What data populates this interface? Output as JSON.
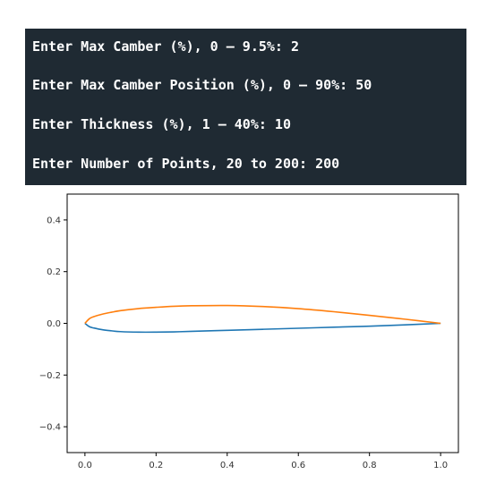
{
  "terminal": {
    "lines": [
      "Enter Max Camber (%), 0 – 9.5%: 2",
      "Enter Max Camber Position (%), 0 – 90%: 50",
      "Enter Thickness (%), 1 – 40%: 10",
      "Enter Number of Points, 20 to 200: 200"
    ]
  },
  "chart_data": {
    "type": "line",
    "title": "",
    "xlabel": "",
    "ylabel": "",
    "xlim": [
      -0.05,
      1.05
    ],
    "ylim": [
      -0.5,
      0.5
    ],
    "xticks": [
      "0.0",
      "0.2",
      "0.4",
      "0.6",
      "0.8",
      "1.0"
    ],
    "yticks": [
      "0.4",
      "0.2",
      "0.0",
      "−0.2",
      "−0.4"
    ],
    "grid": false,
    "series": [
      {
        "color": "#1f77b4",
        "x": [
          1.0,
          0.9,
          0.8,
          0.7,
          0.6,
          0.5,
          0.4,
          0.3,
          0.25,
          0.2,
          0.15,
          0.1,
          0.075,
          0.05,
          0.025,
          0.0125,
          0.0
        ],
        "y": [
          0.0,
          -0.006,
          -0.011,
          -0.015,
          -0.019,
          -0.023,
          -0.027,
          -0.031,
          -0.033,
          -0.034,
          -0.034,
          -0.032,
          -0.029,
          -0.025,
          -0.018,
          -0.013,
          0.0
        ]
      },
      {
        "color": "#ff7f0e",
        "x": [
          0.0,
          0.0125,
          0.025,
          0.05,
          0.075,
          0.1,
          0.15,
          0.2,
          0.25,
          0.3,
          0.4,
          0.5,
          0.6,
          0.7,
          0.8,
          0.9,
          1.0
        ],
        "y": [
          0.0,
          0.018,
          0.026,
          0.036,
          0.043,
          0.049,
          0.057,
          0.062,
          0.066,
          0.068,
          0.069,
          0.065,
          0.057,
          0.045,
          0.031,
          0.016,
          0.0
        ]
      }
    ]
  }
}
